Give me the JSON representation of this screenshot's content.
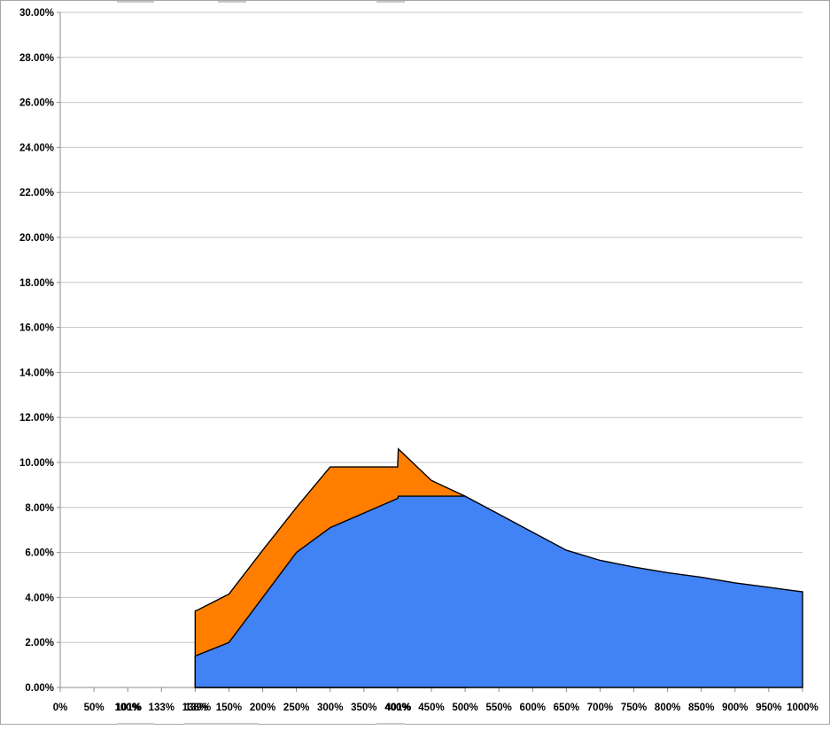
{
  "chart_data": {
    "type": "area",
    "title": "",
    "xlabel": "",
    "ylabel": "",
    "grid": true,
    "legend": "none",
    "background": "#ffffff",
    "y_axis": {
      "min": 0,
      "max": 30,
      "step": 2,
      "tick_labels": [
        "0.00%",
        "2.00%",
        "4.00%",
        "6.00%",
        "8.00%",
        "10.00%",
        "12.00%",
        "14.00%",
        "16.00%",
        "18.00%",
        "20.00%",
        "22.00%",
        "24.00%",
        "26.00%",
        "28.00%",
        "30.00%"
      ]
    },
    "x_axis": {
      "major_ticks": [
        "0%",
        "50%",
        "100%",
        "133%",
        "138%",
        "150%",
        "200%",
        "250%",
        "300%",
        "350%",
        "400%",
        "450%",
        "500%",
        "550%",
        "600%",
        "650%",
        "700%",
        "750%",
        "800%",
        "850%",
        "900%",
        "950%",
        "1000%"
      ],
      "overlapping_ticks": [
        {
          "label": "101%",
          "value": 101
        },
        {
          "label": "139%",
          "value": 139
        },
        {
          "label": "401%",
          "value": 401
        }
      ]
    },
    "series": [
      {
        "name": "orange-area",
        "fill": "#FF7E00",
        "outline": "#000000",
        "points": [
          [
            138,
            3.4
          ],
          [
            139,
            3.45
          ],
          [
            150,
            4.15
          ],
          [
            200,
            6.1
          ],
          [
            250,
            8.0
          ],
          [
            300,
            9.8
          ],
          [
            350,
            9.8
          ],
          [
            400,
            9.8
          ],
          [
            401,
            10.6
          ],
          [
            450,
            9.2
          ],
          [
            500,
            8.5
          ]
        ]
      },
      {
        "name": "blue-area",
        "fill": "#4182F5",
        "outline": "#000000",
        "points": [
          [
            138,
            1.4
          ],
          [
            139,
            1.45
          ],
          [
            150,
            2.0
          ],
          [
            200,
            4.0
          ],
          [
            250,
            6.0
          ],
          [
            300,
            7.1
          ],
          [
            350,
            7.75
          ],
          [
            400,
            8.4
          ],
          [
            401,
            8.5
          ],
          [
            450,
            8.5
          ],
          [
            500,
            8.5
          ],
          [
            550,
            7.7
          ],
          [
            600,
            6.9
          ],
          [
            650,
            6.1
          ],
          [
            700,
            5.65
          ],
          [
            750,
            5.35
          ],
          [
            800,
            5.1
          ],
          [
            850,
            4.9
          ],
          [
            900,
            4.65
          ],
          [
            950,
            4.45
          ],
          [
            1000,
            4.25
          ]
        ]
      }
    ],
    "colors": {
      "gridline": "#c6c6c6",
      "axis": "#8c8c8c",
      "text": "#000000"
    }
  }
}
